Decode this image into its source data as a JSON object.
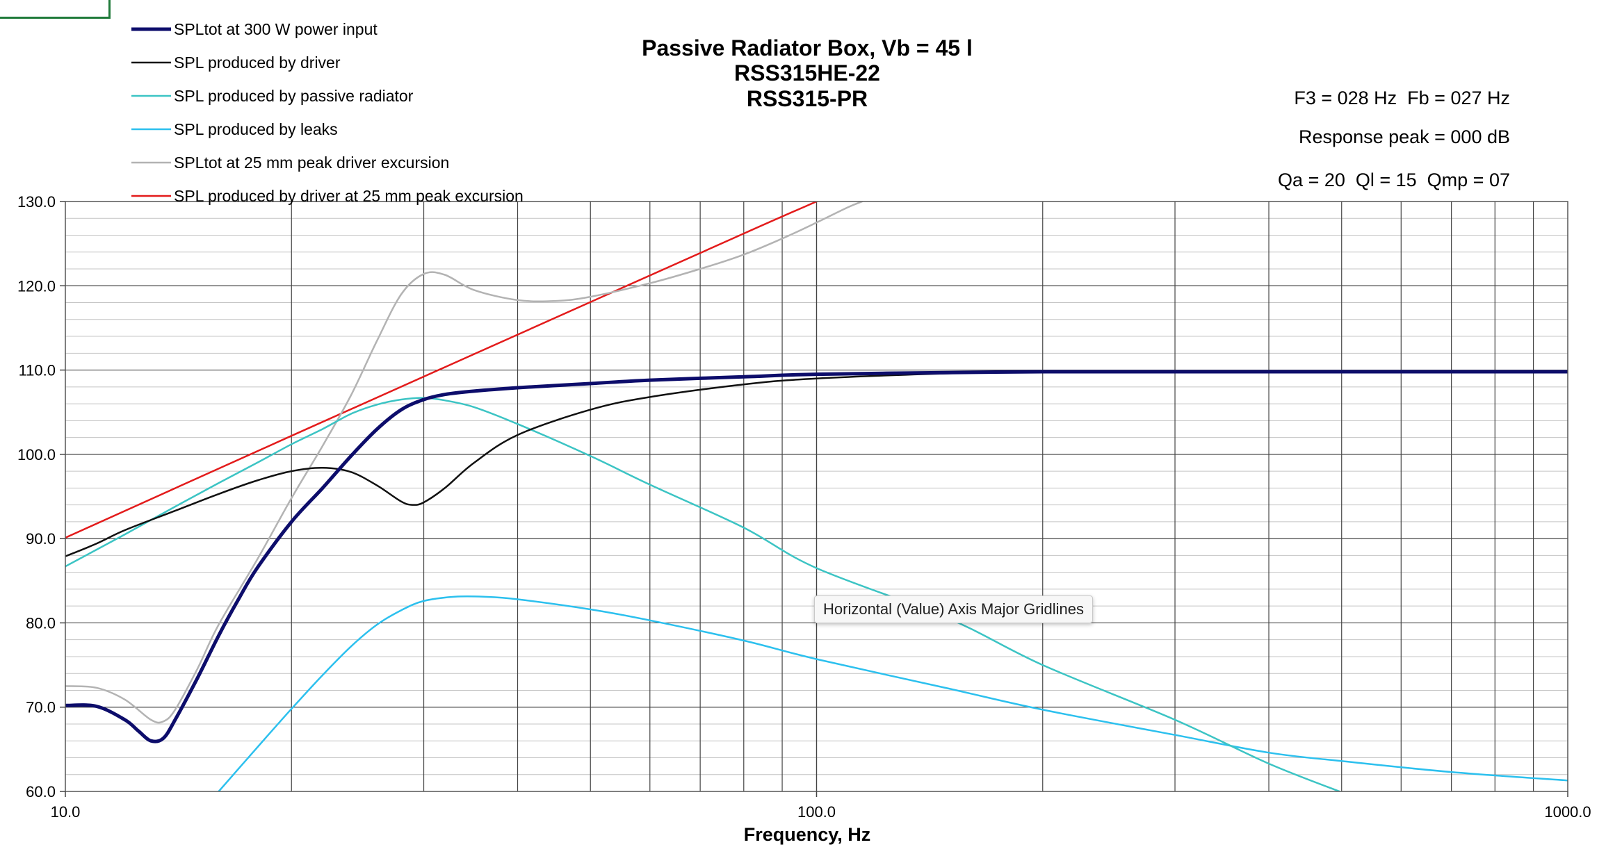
{
  "chart_data": {
    "type": "line",
    "title": [
      "Passive Radiator Box, Vb = 45 l",
      "RSS315HE-22",
      "RSS315-PR"
    ],
    "annotations": [
      "F3 = 028 Hz  Fb = 027 Hz",
      "Response peak = 000 dB",
      "Qa = 20  Ql = 15  Qmp = 07"
    ],
    "xlabel": "Frequency, Hz",
    "ylabel": "",
    "x_scale": "log",
    "xlim": [
      10,
      1000
    ],
    "ylim": [
      60,
      130
    ],
    "x_ticks": [
      "10.0",
      "100.0",
      "1000.0"
    ],
    "y_ticks": [
      "130.0",
      "120.0",
      "110.0",
      "100.0",
      "90.0",
      "80.0",
      "70.0",
      "60.0"
    ],
    "grid": true,
    "legend_position": "top-left",
    "series": [
      {
        "name": "SPLtot at 300 W power input",
        "color": "#0d0d6b",
        "width": 5,
        "points": [
          [
            10,
            70.2
          ],
          [
            11,
            70.1
          ],
          [
            12,
            68.5
          ],
          [
            12.5,
            67.2
          ],
          [
            13,
            66.0
          ],
          [
            13.5,
            66.3
          ],
          [
            14,
            68.5
          ],
          [
            15,
            73.5
          ],
          [
            16,
            78.5
          ],
          [
            17,
            82.8
          ],
          [
            18,
            86.5
          ],
          [
            20,
            92.0
          ],
          [
            22,
            96.0
          ],
          [
            24,
            99.8
          ],
          [
            26,
            103.0
          ],
          [
            28,
            105.3
          ],
          [
            30,
            106.5
          ],
          [
            32,
            107.1
          ],
          [
            35,
            107.5
          ],
          [
            40,
            107.9
          ],
          [
            50,
            108.4
          ],
          [
            60,
            108.8
          ],
          [
            80,
            109.2
          ],
          [
            100,
            109.5
          ],
          [
            150,
            109.7
          ],
          [
            200,
            109.8
          ],
          [
            300,
            109.8
          ],
          [
            500,
            109.8
          ],
          [
            1000,
            109.8
          ]
        ]
      },
      {
        "name": "SPL produced by driver",
        "color": "#111111",
        "width": 2.5,
        "points": [
          [
            10,
            87.9
          ],
          [
            11,
            89.4
          ],
          [
            12,
            91.0
          ],
          [
            14,
            93.3
          ],
          [
            16,
            95.3
          ],
          [
            18,
            96.9
          ],
          [
            20,
            98.0
          ],
          [
            22,
            98.4
          ],
          [
            24,
            97.9
          ],
          [
            26,
            96.3
          ],
          [
            28,
            94.4
          ],
          [
            29,
            94.0
          ],
          [
            30,
            94.3
          ],
          [
            32,
            96.0
          ],
          [
            35,
            99.0
          ],
          [
            40,
            102.3
          ],
          [
            50,
            105.3
          ],
          [
            60,
            106.8
          ],
          [
            80,
            108.3
          ],
          [
            100,
            109.0
          ],
          [
            150,
            109.6
          ],
          [
            200,
            109.8
          ],
          [
            300,
            109.8
          ],
          [
            1000,
            109.8
          ]
        ]
      },
      {
        "name": "SPL produced by passive radiator",
        "color": "#3cc4c4",
        "width": 2.5,
        "points": [
          [
            10,
            86.7
          ],
          [
            12,
            90.5
          ],
          [
            14,
            93.8
          ],
          [
            16,
            96.6
          ],
          [
            18,
            99.0
          ],
          [
            20,
            101.2
          ],
          [
            22,
            103.0
          ],
          [
            24,
            104.8
          ],
          [
            26,
            105.9
          ],
          [
            28,
            106.5
          ],
          [
            30,
            106.7
          ],
          [
            32,
            106.4
          ],
          [
            35,
            105.6
          ],
          [
            40,
            103.6
          ],
          [
            50,
            99.8
          ],
          [
            60,
            96.4
          ],
          [
            80,
            91.3
          ],
          [
            100,
            86.5
          ],
          [
            150,
            80.5
          ],
          [
            200,
            75.0
          ],
          [
            300,
            68.5
          ],
          [
            400,
            63.3
          ],
          [
            500,
            59.9
          ]
        ]
      },
      {
        "name": "SPL produced by leaks",
        "color": "#2cc0ee",
        "width": 2.5,
        "points": [
          [
            16,
            60
          ],
          [
            18,
            65.2
          ],
          [
            20,
            69.8
          ],
          [
            22,
            73.8
          ],
          [
            24,
            77.2
          ],
          [
            26,
            79.8
          ],
          [
            28,
            81.5
          ],
          [
            30,
            82.6
          ],
          [
            33,
            83.1
          ],
          [
            36,
            83.1
          ],
          [
            40,
            82.8
          ],
          [
            50,
            81.6
          ],
          [
            60,
            80.3
          ],
          [
            80,
            77.9
          ],
          [
            100,
            75.7
          ],
          [
            150,
            72.2
          ],
          [
            200,
            69.7
          ],
          [
            300,
            66.7
          ],
          [
            400,
            64.6
          ],
          [
            500,
            63.6
          ],
          [
            700,
            62.3
          ],
          [
            1000,
            61.3
          ]
        ]
      },
      {
        "name": "SPLtot at 25 mm peak driver excursion",
        "color": "#b3b3b3",
        "width": 2.5,
        "points": [
          [
            10,
            72.5
          ],
          [
            11,
            72.3
          ],
          [
            12,
            70.9
          ],
          [
            13,
            68.5
          ],
          [
            13.5,
            68.3
          ],
          [
            14,
            69.7
          ],
          [
            15,
            74.6
          ],
          [
            16,
            79.8
          ],
          [
            18,
            87.5
          ],
          [
            20,
            94.8
          ],
          [
            22,
            101.0
          ],
          [
            24,
            107.0
          ],
          [
            26,
            113.5
          ],
          [
            28,
            119.0
          ],
          [
            30,
            121.4
          ],
          [
            32,
            121.3
          ],
          [
            35,
            119.5
          ],
          [
            40,
            118.3
          ],
          [
            45,
            118.2
          ],
          [
            50,
            118.7
          ],
          [
            60,
            120.3
          ],
          [
            70,
            122.0
          ],
          [
            80,
            123.7
          ],
          [
            90,
            125.6
          ],
          [
            100,
            127.5
          ],
          [
            110,
            129.3
          ],
          [
            115,
            130
          ]
        ]
      },
      {
        "name": "SPL produced by driver at 25 mm peak excursion",
        "color": "#e31b1b",
        "width": 2.5,
        "points": [
          [
            10,
            90.1
          ],
          [
            20,
            102.2
          ],
          [
            40,
            114.2
          ],
          [
            80,
            126.2
          ],
          [
            100,
            130
          ]
        ]
      }
    ]
  },
  "tooltip": "Horizontal (Value) Axis Major Gridlines"
}
